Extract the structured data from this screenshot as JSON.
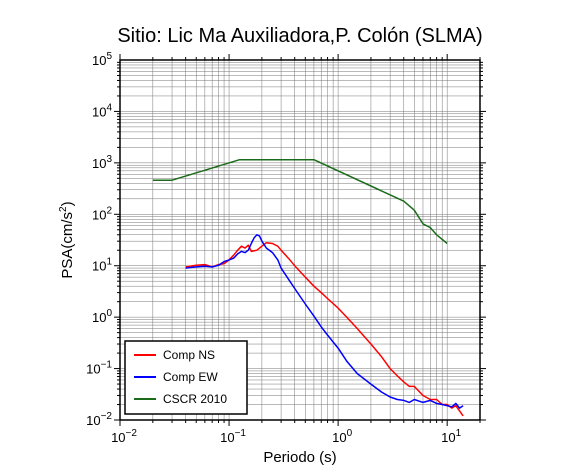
{
  "chart_data": {
    "type": "line",
    "title": "Sitio: Lic Ma Auxiliadora,P. Colón (SLMA)",
    "xlabel": "Periodo (s)",
    "ylabel": {
      "main": "PSA(cm/s",
      "sup": "2",
      "end": ")"
    },
    "xscale": "log",
    "yscale": "log",
    "xlim": [
      0.01,
      20
    ],
    "ylim": [
      0.01,
      100000
    ],
    "grid": true,
    "legend_position": "bottom-left",
    "x_ticks": [
      {
        "base": "10",
        "exp": "−2"
      },
      {
        "base": "10",
        "exp": "−1"
      },
      {
        "base": "10",
        "exp": "0"
      },
      {
        "base": "10",
        "exp": "1"
      }
    ],
    "y_ticks": [
      {
        "base": "10",
        "exp": "−2"
      },
      {
        "base": "10",
        "exp": "−1"
      },
      {
        "base": "10",
        "exp": "0"
      },
      {
        "base": "10",
        "exp": "1"
      },
      {
        "base": "10",
        "exp": "2"
      },
      {
        "base": "10",
        "exp": "3"
      },
      {
        "base": "10",
        "exp": "4"
      },
      {
        "base": "10",
        "exp": "5"
      }
    ],
    "series": [
      {
        "name": "Comp NS",
        "color": "#ff0000",
        "x": [
          0.04,
          0.05,
          0.06,
          0.07,
          0.08,
          0.09,
          0.1,
          0.11,
          0.12,
          0.13,
          0.14,
          0.15,
          0.16,
          0.18,
          0.2,
          0.22,
          0.25,
          0.28,
          0.3,
          0.35,
          0.4,
          0.5,
          0.6,
          0.7,
          0.8,
          1.0,
          1.2,
          1.5,
          2.0,
          2.5,
          3.0,
          3.5,
          4.0,
          4.5,
          5.0,
          6.0,
          7.0,
          8.0,
          9.0,
          10.0,
          11.0,
          12.0,
          13.0,
          14.0
        ],
        "y": [
          9.5,
          10.2,
          10.5,
          9.5,
          10.5,
          11,
          13,
          16,
          20,
          24,
          22,
          25,
          19,
          20,
          24,
          28,
          27,
          24,
          20,
          14,
          10,
          6,
          4,
          3,
          2.3,
          1.5,
          1.0,
          0.6,
          0.3,
          0.17,
          0.1,
          0.072,
          0.055,
          0.045,
          0.045,
          0.03,
          0.025,
          0.025,
          0.02,
          0.02,
          0.017,
          0.019,
          0.015,
          0.012
        ]
      },
      {
        "name": "Comp EW",
        "color": "#0000ff",
        "x": [
          0.04,
          0.05,
          0.06,
          0.07,
          0.08,
          0.09,
          0.1,
          0.11,
          0.12,
          0.13,
          0.14,
          0.15,
          0.16,
          0.17,
          0.18,
          0.19,
          0.2,
          0.22,
          0.25,
          0.28,
          0.3,
          0.35,
          0.4,
          0.5,
          0.6,
          0.7,
          0.8,
          1.0,
          1.2,
          1.5,
          2.0,
          2.5,
          3.0,
          3.5,
          4.0,
          4.5,
          5.0,
          6.0,
          7.0,
          8.0,
          9.0,
          10.0,
          11.0,
          12.0,
          13.0,
          14.0
        ],
        "y": [
          9,
          9.5,
          9.8,
          9.5,
          10.2,
          12,
          13,
          14,
          17,
          19,
          18,
          20,
          27,
          35,
          40,
          38,
          30,
          22,
          18,
          13,
          9,
          5.5,
          3.6,
          1.8,
          1.05,
          0.65,
          0.45,
          0.25,
          0.14,
          0.08,
          0.05,
          0.035,
          0.028,
          0.025,
          0.024,
          0.022,
          0.025,
          0.022,
          0.024,
          0.021,
          0.02,
          0.019,
          0.018,
          0.021,
          0.017,
          0.019
        ]
      },
      {
        "name": "CSCR 2010",
        "color": "#1a6b1a",
        "x": [
          0.02,
          0.03,
          0.125,
          0.6,
          4.0,
          5.0,
          6.0,
          7.0,
          8.0,
          10.0
        ],
        "y": [
          460,
          460,
          1150,
          1150,
          180,
          120,
          65,
          55,
          40,
          27
        ]
      }
    ]
  }
}
